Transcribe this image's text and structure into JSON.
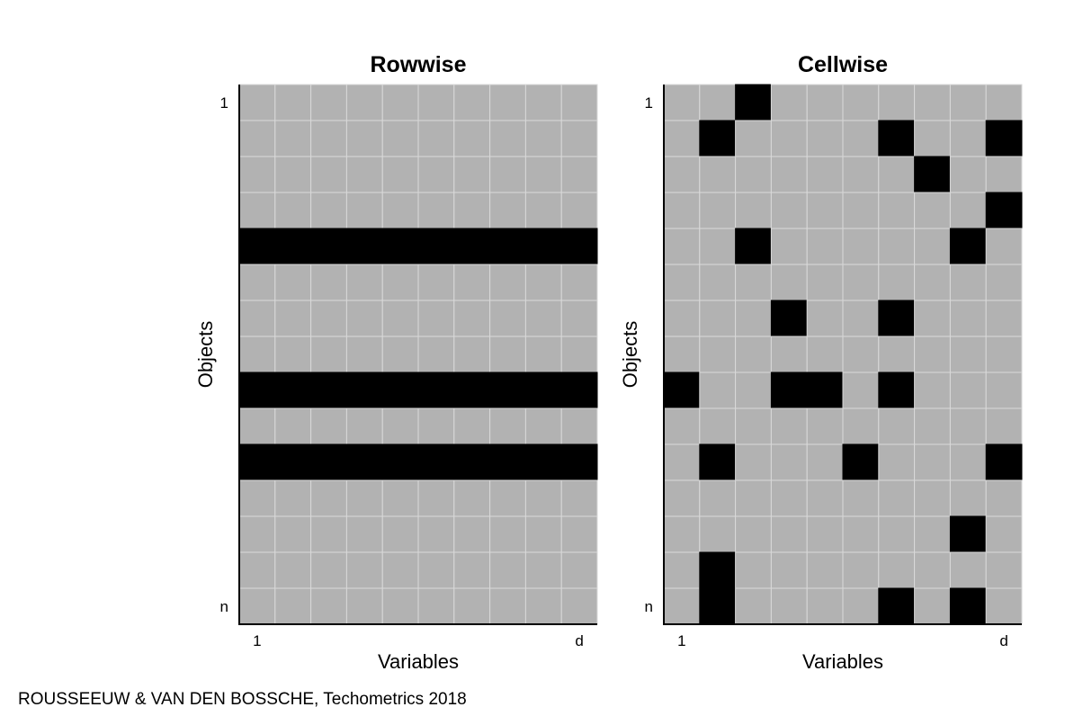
{
  "panels": [
    {
      "title": "Rowwise",
      "ylabel": "Objects",
      "xlabel": "Variables",
      "row_first": "1",
      "row_last": "n",
      "col_first": "1",
      "col_last": "d",
      "rows": 15,
      "cols": 10,
      "outlier_rows": [
        4,
        8,
        10
      ],
      "outlier_cells": []
    },
    {
      "title": "Cellwise",
      "ylabel": "Objects",
      "xlabel": "Variables",
      "row_first": "1",
      "row_last": "n",
      "col_first": "1",
      "col_last": "d",
      "rows": 15,
      "cols": 10,
      "outlier_rows": [],
      "outlier_cells": [
        [
          0,
          2
        ],
        [
          1,
          1
        ],
        [
          1,
          6
        ],
        [
          1,
          9
        ],
        [
          2,
          7
        ],
        [
          3,
          9
        ],
        [
          4,
          2
        ],
        [
          4,
          8
        ],
        [
          6,
          3
        ],
        [
          6,
          6
        ],
        [
          8,
          0
        ],
        [
          8,
          3
        ],
        [
          8,
          4
        ],
        [
          8,
          6
        ],
        [
          10,
          1
        ],
        [
          10,
          5
        ],
        [
          10,
          9
        ],
        [
          12,
          8
        ],
        [
          13,
          1
        ],
        [
          14,
          1
        ],
        [
          14,
          6
        ],
        [
          14,
          8
        ]
      ]
    }
  ],
  "colors": {
    "normal": "#b2b2b2",
    "outlier": "#000000",
    "grid": "#d9d9d9"
  },
  "caption": "ROUSSEEUW & VAN DEN BOSSCHE, Techometrics 2018"
}
